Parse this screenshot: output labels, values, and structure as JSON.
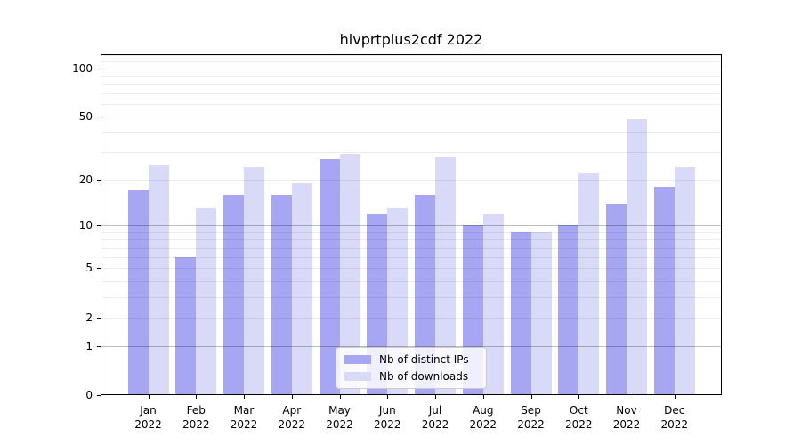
{
  "chart_data": {
    "type": "bar",
    "title": "hivprtplus2cdf 2022",
    "categories": [
      "Jan 2022",
      "Feb 2022",
      "Mar 2022",
      "Apr 2022",
      "May 2022",
      "Jun 2022",
      "Jul 2022",
      "Aug 2022",
      "Sep 2022",
      "Oct 2022",
      "Nov 2022",
      "Dec 2022"
    ],
    "series": [
      {
        "name": "Nb of distinct IPs",
        "color": "#a6a6f2",
        "values": [
          17,
          6,
          16,
          16,
          27,
          12,
          16,
          10,
          9,
          10,
          14,
          18
        ]
      },
      {
        "name": "Nb of downloads",
        "color": "#d9d9f8",
        "values": [
          25,
          13,
          24,
          19,
          29,
          13,
          28,
          12,
          9,
          22,
          48,
          24
        ]
      }
    ],
    "xlabel": "",
    "ylabel": "",
    "yscale": "log10(1+y)",
    "ylim": [
      0,
      122
    ],
    "yticks": [
      0,
      1,
      2,
      5,
      10,
      20,
      50,
      100
    ],
    "grid_major": [
      1,
      10,
      100
    ],
    "grid_minor": [
      2,
      3,
      4,
      5,
      6,
      7,
      8,
      9,
      20,
      30,
      40,
      50,
      60,
      70,
      80,
      90,
      110,
      120
    ],
    "grid_on": true,
    "legend_position": "inside-bottom-center"
  }
}
